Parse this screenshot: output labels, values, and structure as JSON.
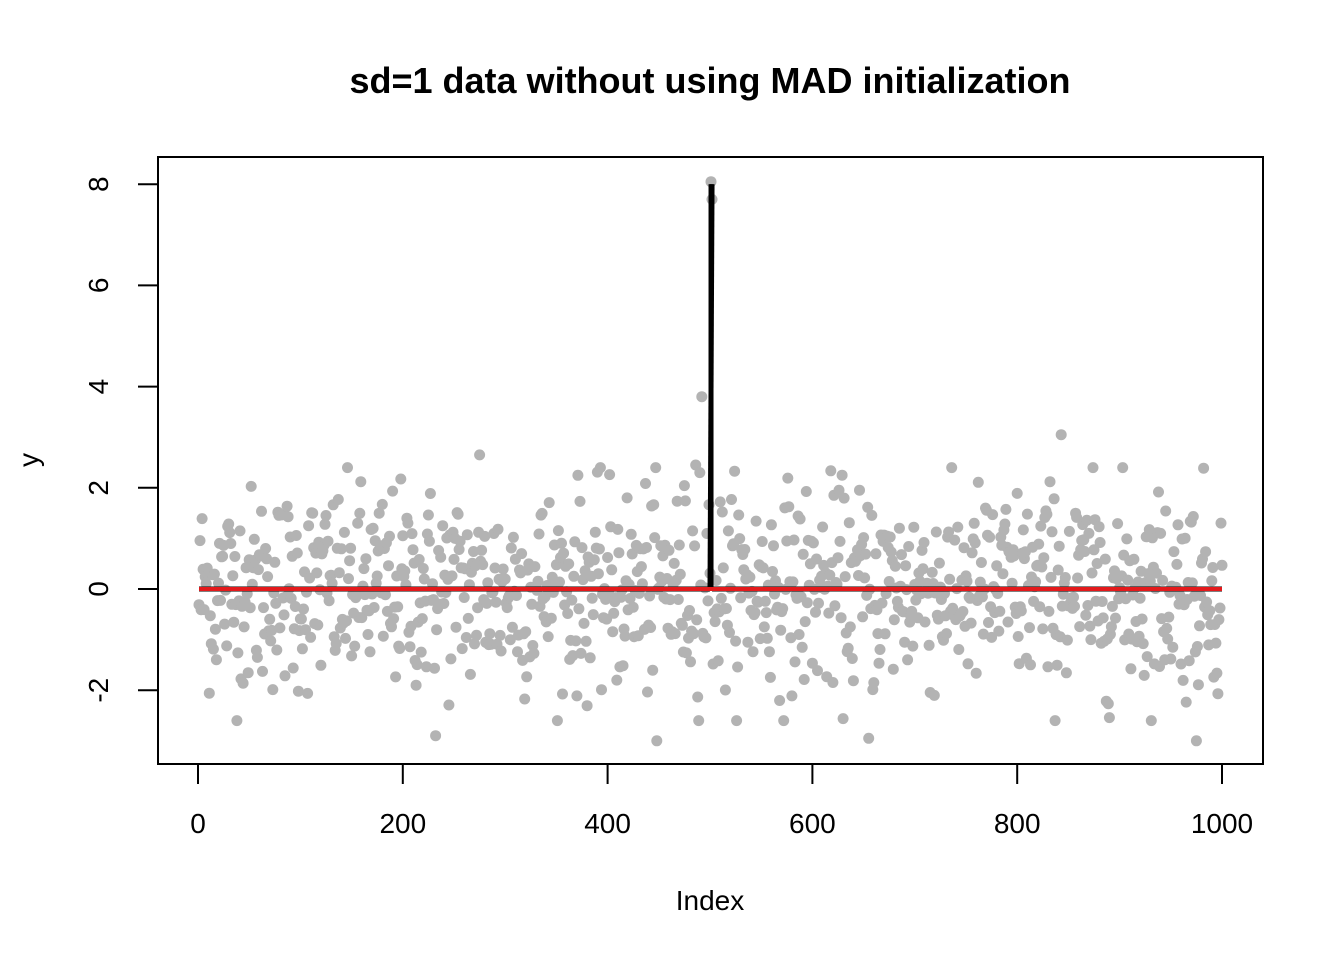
{
  "chart_data": {
    "type": "scatter",
    "title": "sd=1 data without using MAD initialization",
    "xlabel": "Index",
    "ylabel": "y",
    "xlim": [
      0,
      1000
    ],
    "ylim": [
      -3,
      8
    ],
    "x_ticks": [
      0,
      200,
      400,
      600,
      800,
      1000
    ],
    "y_ticks": [
      -2,
      0,
      2,
      4,
      6,
      8
    ],
    "grid": false,
    "legend": "none",
    "points": {
      "color": "#b3b3b3",
      "n": 1000,
      "x_start": 1,
      "sd": 1,
      "outliers": [
        {
          "x": 492,
          "y": 3.8
        },
        {
          "x": 501,
          "y": 8.05
        },
        {
          "x": 502,
          "y": 7.7
        },
        {
          "x": 486,
          "y": 2.45
        },
        {
          "x": 490,
          "y": 2.3
        },
        {
          "x": 843,
          "y": 3.05
        },
        {
          "x": 275,
          "y": 2.65
        },
        {
          "x": 448,
          "y": -3.0
        },
        {
          "x": 975,
          "y": -3.0
        },
        {
          "x": 232,
          "y": -2.9
        },
        {
          "x": 655,
          "y": -2.95
        }
      ]
    },
    "series": [
      {
        "type": "segments",
        "color": "#000000",
        "segments": [
          {
            "x": [
              1,
              500
            ],
            "y": [
              0,
              0
            ]
          },
          {
            "x": [
              500,
              502
            ],
            "y": [
              0,
              8.0
            ]
          },
          {
            "x": [
              502,
              1000
            ],
            "y": [
              0,
              0
            ]
          }
        ]
      },
      {
        "type": "line",
        "color": "#e41a1c",
        "x": [
          1,
          1000
        ],
        "y": [
          0,
          0
        ]
      }
    ]
  }
}
